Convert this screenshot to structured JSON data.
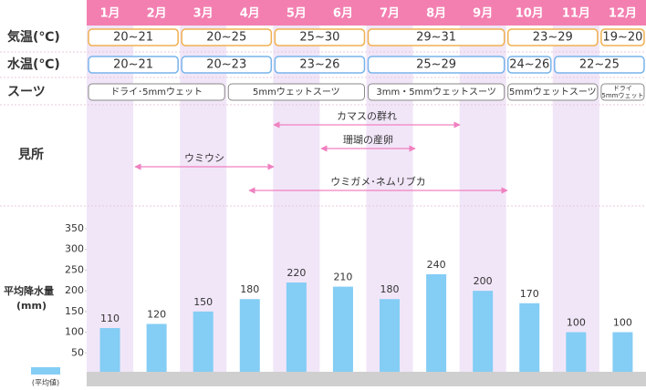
{
  "months": [
    "1月",
    "2月",
    "3月",
    "4月",
    "5月",
    "6月",
    "7月",
    "8月",
    "9月",
    "10月",
    "11月",
    "12月"
  ],
  "rows": [
    {
      "label": "気温(℃)",
      "color": "#f0b050",
      "cells": [
        {
          "text": "20~21",
          "span": 2
        },
        {
          "text": "20~25",
          "span": 2
        },
        {
          "text": "25~30",
          "span": 2
        },
        {
          "text": "29~31",
          "span": 3
        },
        {
          "text": "23~29",
          "span": 2
        },
        {
          "text": "19~20",
          "span": 1
        }
      ]
    },
    {
      "label": "水温(℃)",
      "color": "#78b4ec",
      "cells": [
        {
          "text": "20~21",
          "span": 2
        },
        {
          "text": "20~23",
          "span": 2
        },
        {
          "text": "23~26",
          "span": 2
        },
        {
          "text": "25~29",
          "span": 3
        },
        {
          "text": "24~26",
          "span": 1
        },
        {
          "text": "22~25",
          "span": 2
        }
      ]
    },
    {
      "label": "スーツ",
      "color": "#888888",
      "cells": [
        {
          "text": "ドライ･5mmウェット",
          "span": 3
        },
        {
          "text": "5mmウェットスーツ",
          "span": 3
        },
        {
          "text": "3mm・5mmウェットスーツ",
          "span": 3
        },
        {
          "text": "5mmウェットスーツ",
          "span": 2
        },
        {
          "text": "ドライ 5mmウェット",
          "span": 1
        }
      ]
    }
  ],
  "highlights": {
    "label": "見所",
    "items": [
      "カマスの群れ",
      "珊瑚の産卵",
      "ウミウシ",
      "ウミガメ･ネムリブカ"
    ]
  },
  "chart_data": {
    "type": "bar",
    "y_label": "平均降水量 (mm)",
    "legend": "(平均値)",
    "color": "#84cdf5",
    "categories": [
      "1月",
      "2月",
      "3月",
      "4月",
      "5月",
      "6月",
      "7月",
      "8月",
      "9月",
      "10月",
      "11月",
      "12月"
    ],
    "values": [
      110,
      120,
      150,
      180,
      220,
      210,
      180,
      240,
      200,
      170,
      100,
      100
    ],
    "ylim": [
      0,
      350
    ],
    "yticks": [
      50,
      100,
      150,
      200,
      250,
      300,
      350
    ],
    "grid": false
  }
}
